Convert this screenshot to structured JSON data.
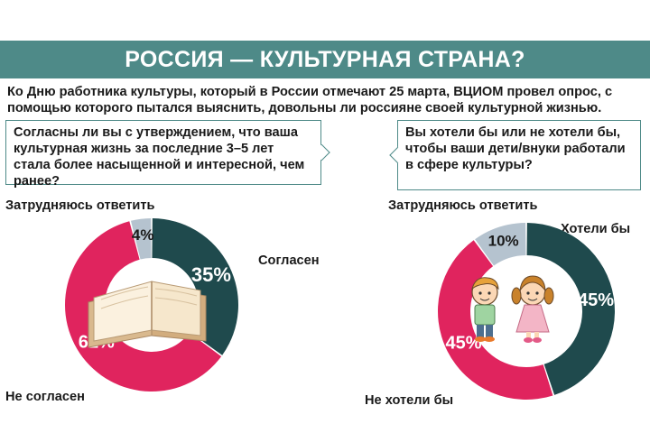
{
  "header": {
    "title": "РОССИЯ — КУЛЬТУРНАЯ СТРАНА?",
    "intro": "Ко Дню работника культуры, который в России отмечают 25 марта, ВЦИОМ провел опрос, с помощью которого пытался выяснить, довольны ли россияне своей культурной жизнью."
  },
  "colors": {
    "banner": "#4e8a88",
    "dark_teal": "#1f4a4d",
    "crimson": "#e0245e",
    "gray": "#b5c3cf"
  },
  "chart_data": [
    {
      "type": "pie",
      "question": "Согласны ли вы с утверждением, что ваша культурная жизнь за последние 3–5 лет стала более насыщенной и интересной, чем ранее?",
      "slices": [
        {
          "label": "Согласен",
          "value": 35,
          "display": "35%",
          "color": "#1f4a4d"
        },
        {
          "label": "Не согласен",
          "value": 61,
          "display": "61%",
          "color": "#e0245e"
        },
        {
          "label": "Затрудняюсь ответить",
          "value": 4,
          "display": "4%",
          "color": "#b5c3cf"
        }
      ],
      "center_icon": "open-book-icon"
    },
    {
      "type": "pie",
      "question": "Вы хотели бы или не хотели бы, чтобы ваши дети/внуки работали в сфере культуры?",
      "slices": [
        {
          "label": "Хотели бы",
          "value": 45,
          "display": "45%",
          "color": "#1f4a4d"
        },
        {
          "label": "Не хотели бы",
          "value": 45,
          "display": "45%",
          "color": "#e0245e"
        },
        {
          "label": "Затрудняюсь ответить",
          "value": 10,
          "display": "10%",
          "color": "#b5c3cf"
        }
      ],
      "center_icon": "children-icon"
    }
  ]
}
